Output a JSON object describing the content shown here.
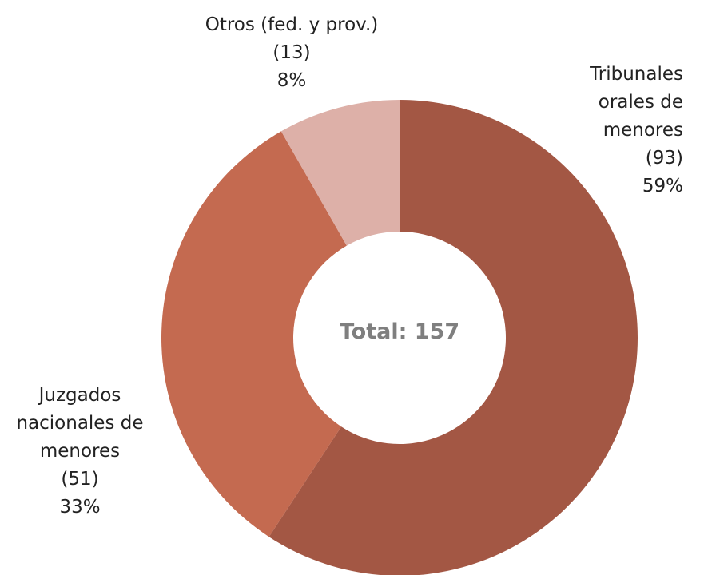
{
  "chart_data": {
    "type": "pie",
    "categories": [
      "Tribunales orales de menores",
      "Juzgados nacionales de menores",
      "Otros (fed. y prov.)"
    ],
    "values": [
      93,
      51,
      13
    ],
    "value_labels": [
      "(93)",
      "(51)",
      "(13)"
    ],
    "percent_labels": [
      "59%",
      "33%",
      "8%"
    ],
    "colors": [
      "#a35744",
      "#c46a50",
      "#ddb0a8"
    ],
    "center_label": "Total: 157",
    "donut": true
  }
}
